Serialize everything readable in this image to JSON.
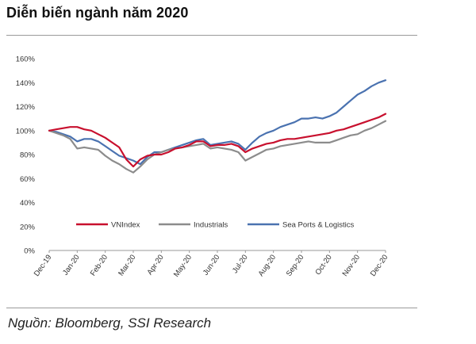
{
  "header": {
    "title": "Diễn biến ngành năm 2020",
    "source": "Nguồn: Bloomberg, SSI Research"
  },
  "colors": {
    "vnindex": "#c8102e",
    "industrials": "#8c8c8c",
    "seaports": "#4a72b0"
  },
  "chart_data": {
    "type": "line",
    "title": "Diễn biến ngành năm 2020",
    "xlabel": "",
    "ylabel": "",
    "ylim": [
      0,
      160
    ],
    "y_ticks": [
      "0%",
      "20%",
      "40%",
      "60%",
      "80%",
      "100%",
      "120%",
      "140%",
      "160%"
    ],
    "x_ticks": [
      "Dec-19",
      "Jan-20",
      "Feb-20",
      "Mar-20",
      "Apr-20",
      "May-20",
      "Jun-20",
      "Jul-20",
      "Aug-20",
      "Sep-20",
      "Oct-20",
      "Nov-20",
      "Dec-20"
    ],
    "x_month_index": [
      0,
      0.25,
      0.5,
      0.75,
      1,
      1.25,
      1.5,
      1.75,
      2,
      2.25,
      2.5,
      2.75,
      3,
      3.25,
      3.5,
      3.75,
      4,
      4.25,
      4.5,
      4.75,
      5,
      5.25,
      5.5,
      5.75,
      6,
      6.25,
      6.5,
      6.75,
      7,
      7.25,
      7.5,
      7.75,
      8,
      8.25,
      8.5,
      8.75,
      9,
      9.25,
      9.5,
      9.75,
      10,
      10.25,
      10.5,
      10.75,
      11,
      11.25,
      11.5,
      11.75,
      12
    ],
    "legend_position": "center",
    "grid": false,
    "series": [
      {
        "name": "VNIndex",
        "values": [
          100,
          101,
          102,
          103,
          103,
          101,
          100,
          97,
          94,
          90,
          86,
          76,
          70,
          76,
          79,
          80,
          80,
          82,
          85,
          86,
          88,
          91,
          91,
          87,
          88,
          88,
          89,
          87,
          82,
          85,
          87,
          89,
          90,
          92,
          93,
          93,
          94,
          95,
          96,
          97,
          98,
          100,
          101,
          103,
          105,
          107,
          109,
          111,
          114
        ]
      },
      {
        "name": "Industrials",
        "values": [
          100,
          98,
          96,
          93,
          85,
          86,
          85,
          84,
          79,
          75,
          72,
          68,
          65,
          70,
          76,
          80,
          82,
          84,
          85,
          86,
          87,
          88,
          89,
          85,
          86,
          85,
          84,
          82,
          75,
          78,
          81,
          84,
          85,
          87,
          88,
          89,
          90,
          91,
          90,
          90,
          90,
          92,
          94,
          96,
          97,
          100,
          102,
          105,
          108
        ]
      },
      {
        "name": "Sea Ports & Logistics",
        "values": [
          100,
          99,
          97,
          95,
          91,
          93,
          93,
          91,
          87,
          83,
          79,
          77,
          75,
          72,
          78,
          82,
          82,
          84,
          86,
          88,
          90,
          92,
          93,
          88,
          89,
          90,
          91,
          89,
          84,
          90,
          95,
          98,
          100,
          103,
          105,
          107,
          110,
          110,
          111,
          110,
          112,
          115,
          120,
          125,
          130,
          133,
          137,
          140,
          142
        ]
      }
    ]
  }
}
